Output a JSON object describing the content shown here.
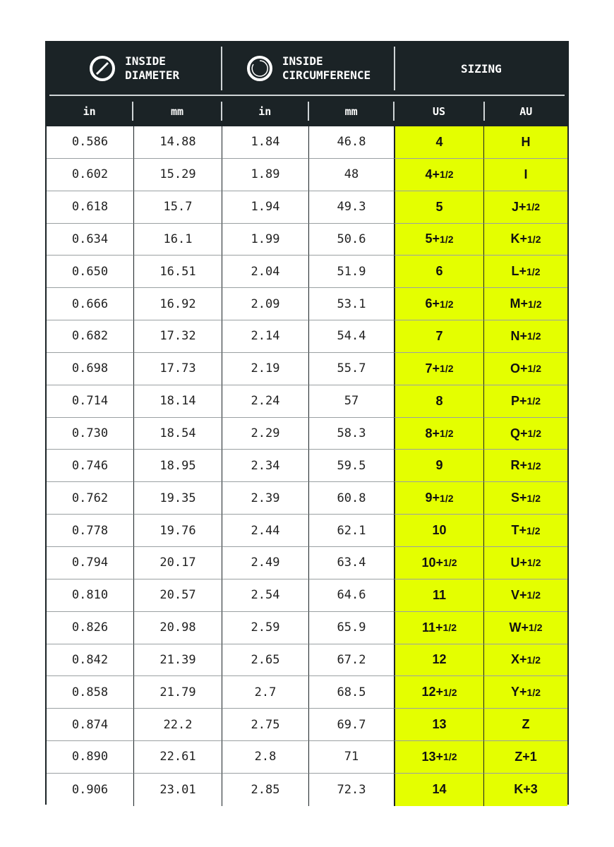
{
  "header": {
    "groups": [
      {
        "line1": "INSIDE",
        "line2": "DIAMETER",
        "icon": "diameter-icon"
      },
      {
        "line1": "INSIDE",
        "line2": "CIRCUMFERENCE",
        "icon": "circumference-icon"
      },
      {
        "label": "SIZING"
      }
    ],
    "columns": [
      "in",
      "mm",
      "in",
      "mm",
      "US",
      "AU"
    ]
  },
  "colors": {
    "header_bg": "#1b2326",
    "sizing_bg": "#e4ff00"
  },
  "rows": [
    [
      "0.586",
      "14.88",
      "1.84",
      "46.8",
      {
        "main": "4",
        "frac": ""
      },
      {
        "main": "H",
        "frac": ""
      }
    ],
    [
      "0.602",
      "15.29",
      "1.89",
      "48",
      {
        "main": "4+",
        "frac": "1/2"
      },
      {
        "main": "I",
        "frac": ""
      }
    ],
    [
      "0.618",
      "15.7",
      "1.94",
      "49.3",
      {
        "main": "5",
        "frac": ""
      },
      {
        "main": "J+",
        "frac": "1/2"
      }
    ],
    [
      "0.634",
      "16.1",
      "1.99",
      "50.6",
      {
        "main": "5+",
        "frac": "1/2"
      },
      {
        "main": "K+",
        "frac": "1/2"
      }
    ],
    [
      "0.650",
      "16.51",
      "2.04",
      "51.9",
      {
        "main": "6",
        "frac": ""
      },
      {
        "main": "L+",
        "frac": "1/2"
      }
    ],
    [
      "0.666",
      "16.92",
      "2.09",
      "53.1",
      {
        "main": "6+",
        "frac": "1/2"
      },
      {
        "main": "M+",
        "frac": "1/2"
      }
    ],
    [
      "0.682",
      "17.32",
      "2.14",
      "54.4",
      {
        "main": "7",
        "frac": ""
      },
      {
        "main": "N+",
        "frac": "1/2"
      }
    ],
    [
      "0.698",
      "17.73",
      "2.19",
      "55.7",
      {
        "main": "7+",
        "frac": "1/2"
      },
      {
        "main": "O+",
        "frac": "1/2"
      }
    ],
    [
      "0.714",
      "18.14",
      "2.24",
      "57",
      {
        "main": "8",
        "frac": ""
      },
      {
        "main": "P+",
        "frac": "1/2"
      }
    ],
    [
      "0.730",
      "18.54",
      "2.29",
      "58.3",
      {
        "main": "8+",
        "frac": "1/2"
      },
      {
        "main": "Q+",
        "frac": "1/2"
      }
    ],
    [
      "0.746",
      "18.95",
      "2.34",
      "59.5",
      {
        "main": "9",
        "frac": ""
      },
      {
        "main": "R+",
        "frac": "1/2"
      }
    ],
    [
      "0.762",
      "19.35",
      "2.39",
      "60.8",
      {
        "main": "9+",
        "frac": "1/2"
      },
      {
        "main": "S+",
        "frac": "1/2"
      }
    ],
    [
      "0.778",
      "19.76",
      "2.44",
      "62.1",
      {
        "main": "10",
        "frac": ""
      },
      {
        "main": "T+",
        "frac": "1/2"
      }
    ],
    [
      "0.794",
      "20.17",
      "2.49",
      "63.4",
      {
        "main": "10+",
        "frac": "1/2"
      },
      {
        "main": "U+",
        "frac": "1/2"
      }
    ],
    [
      "0.810",
      "20.57",
      "2.54",
      "64.6",
      {
        "main": "11",
        "frac": ""
      },
      {
        "main": "V+",
        "frac": "1/2"
      }
    ],
    [
      "0.826",
      "20.98",
      "2.59",
      "65.9",
      {
        "main": "11+",
        "frac": "1/2"
      },
      {
        "main": "W+",
        "frac": "1/2"
      }
    ],
    [
      "0.842",
      "21.39",
      "2.65",
      "67.2",
      {
        "main": "12",
        "frac": ""
      },
      {
        "main": "X+",
        "frac": "1/2"
      }
    ],
    [
      "0.858",
      "21.79",
      "2.7",
      "68.5",
      {
        "main": "12+",
        "frac": "1/2"
      },
      {
        "main": "Y+",
        "frac": "1/2"
      }
    ],
    [
      "0.874",
      "22.2",
      "2.75",
      "69.7",
      {
        "main": "13",
        "frac": ""
      },
      {
        "main": "Z",
        "frac": ""
      }
    ],
    [
      "0.890",
      "22.61",
      "2.8",
      "71",
      {
        "main": "13+",
        "frac": "1/2"
      },
      {
        "main": "Z+1",
        "frac": ""
      }
    ],
    [
      "0.906",
      "23.01",
      "2.85",
      "72.3",
      {
        "main": "14",
        "frac": ""
      },
      {
        "main": "K+3",
        "frac": ""
      }
    ]
  ]
}
